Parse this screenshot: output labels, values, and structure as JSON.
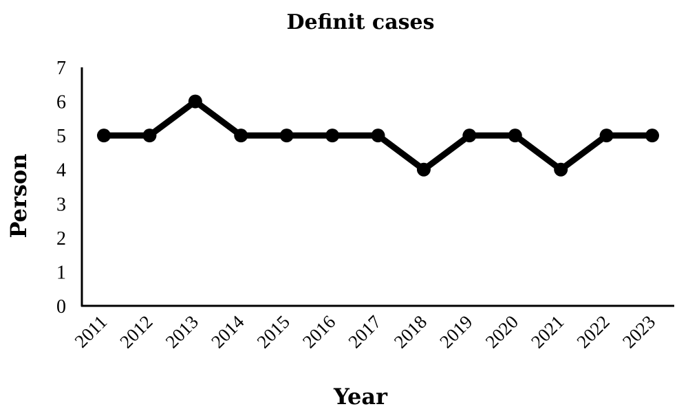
{
  "chart_data": {
    "type": "line",
    "title": "Definit cases",
    "xlabel": "Year",
    "ylabel": "Person",
    "ylim": [
      0,
      7
    ],
    "yticks": [
      "0",
      "1",
      "2",
      "3",
      "4",
      "5",
      "6",
      "7"
    ],
    "categories": [
      "2011",
      "2012",
      "2013",
      "2014",
      "2015",
      "2016",
      "2017",
      "2018",
      "2019",
      "2020",
      "2021",
      "2022",
      "2023"
    ],
    "series": [
      {
        "values": [
          5,
          5,
          6,
          5,
          5,
          5,
          5,
          4,
          5,
          5,
          4,
          5,
          5
        ]
      }
    ],
    "colors": {
      "line": "#000000",
      "marker": "#000000",
      "axis": "#000000"
    },
    "grid": false,
    "legend": "none"
  }
}
